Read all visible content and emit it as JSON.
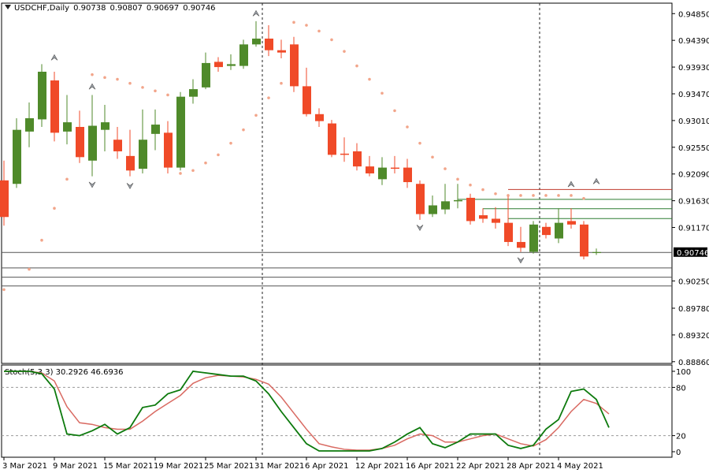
{
  "header": {
    "symbol": "USDCHF,Daily",
    "open": "0.90738",
    "high": "0.90807",
    "low": "0.90697",
    "close": "0.90746"
  },
  "stoch_header": "Stoch(5,3,3) 30.2926 46.6936",
  "colors": {
    "bull": "#4f8a2a",
    "bear": "#f04a28",
    "sar": "#f2a58a",
    "stoch_main": "#0d7a0d",
    "stoch_signal": "#d96a62",
    "hline_red": "#c0392b",
    "hline_green": "#2e7d32",
    "hline_gray": "#555555",
    "price_tag_bg": "#000000",
    "price_tag_fg": "#ffffff"
  },
  "chart_data": {
    "type": "candlestick",
    "price_axis": {
      "ticks": [
        "0.94850",
        "0.94390",
        "0.93930",
        "0.93470",
        "0.93010",
        "0.92550",
        "0.92090",
        "0.91630",
        "0.91170",
        "0.90250",
        "0.89780",
        "0.89320",
        "0.88860"
      ],
      "range": [
        0.8883,
        0.9503
      ]
    },
    "current_price_label": "0.90746",
    "date_labels": [
      "3 Mar 2021",
      "9 Mar 2021",
      "15 Mar 2021",
      "19 Mar 2021",
      "25 Mar 2021",
      "31 Mar 2021",
      "6 Apr 2021",
      "12 Apr 2021",
      "16 Apr 2021",
      "22 Apr 2021",
      "28 Apr 2021",
      "4 May 2021"
    ],
    "date_label_bars": [
      0,
      4,
      8,
      12,
      16,
      20,
      24,
      28,
      32,
      36,
      40,
      44
    ],
    "vlines_at_bars": [
      20.5,
      42.5
    ],
    "candles": [
      [
        0.9198,
        0.9135,
        0.9232,
        0.912
      ],
      [
        0.9192,
        0.9285,
        0.9305,
        0.9185
      ],
      [
        0.9282,
        0.9305,
        0.9332,
        0.9255
      ],
      [
        0.9303,
        0.9385,
        0.9398,
        0.929
      ],
      [
        0.937,
        0.928,
        0.9385,
        0.9265
      ],
      [
        0.9282,
        0.9298,
        0.9345,
        0.926
      ],
      [
        0.929,
        0.9238,
        0.9318,
        0.9228
      ],
      [
        0.9232,
        0.9292,
        0.9345,
        0.9205
      ],
      [
        0.9285,
        0.9298,
        0.9328,
        0.9248
      ],
      [
        0.9268,
        0.9248,
        0.929,
        0.9235
      ],
      [
        0.924,
        0.9215,
        0.9285,
        0.9205
      ],
      [
        0.9218,
        0.9268,
        0.932,
        0.921
      ],
      [
        0.9278,
        0.9294,
        0.932,
        0.925
      ],
      [
        0.928,
        0.922,
        0.93,
        0.921
      ],
      [
        0.922,
        0.9342,
        0.935,
        0.9215
      ],
      [
        0.9342,
        0.9355,
        0.9372,
        0.933
      ],
      [
        0.9358,
        0.94,
        0.9418,
        0.9355
      ],
      [
        0.9402,
        0.9393,
        0.941,
        0.9385
      ],
      [
        0.9395,
        0.9398,
        0.9415,
        0.9388
      ],
      [
        0.9395,
        0.9432,
        0.944,
        0.939
      ],
      [
        0.9432,
        0.9442,
        0.9472,
        0.9428
      ],
      [
        0.9442,
        0.9422,
        0.9465,
        0.9412
      ],
      [
        0.9422,
        0.9418,
        0.944,
        0.9408
      ],
      [
        0.9432,
        0.936,
        0.9445,
        0.935
      ],
      [
        0.936,
        0.9312,
        0.9392,
        0.9308
      ],
      [
        0.9312,
        0.93,
        0.9322,
        0.929
      ],
      [
        0.9296,
        0.9242,
        0.9302,
        0.9238
      ],
      [
        0.9244,
        0.9242,
        0.9272,
        0.923
      ],
      [
        0.9248,
        0.9222,
        0.9262,
        0.9215
      ],
      [
        0.9222,
        0.921,
        0.924,
        0.9205
      ],
      [
        0.92,
        0.922,
        0.9238,
        0.919
      ],
      [
        0.922,
        0.9218,
        0.924,
        0.921
      ],
      [
        0.922,
        0.9195,
        0.9235,
        0.9185
      ],
      [
        0.9192,
        0.914,
        0.9198,
        0.913
      ],
      [
        0.914,
        0.9155,
        0.9172,
        0.9135
      ],
      [
        0.9148,
        0.9162,
        0.9192,
        0.914
      ],
      [
        0.9162,
        0.9164,
        0.9192,
        0.915
      ],
      [
        0.9168,
        0.9128,
        0.9175,
        0.9122
      ],
      [
        0.9138,
        0.9132,
        0.915,
        0.9125
      ],
      [
        0.9132,
        0.9125,
        0.9152,
        0.9115
      ],
      [
        0.9125,
        0.9092,
        0.917,
        0.9085
      ],
      [
        0.9092,
        0.9082,
        0.9118,
        0.9075
      ],
      [
        0.9075,
        0.9122,
        0.9128,
        0.9072
      ],
      [
        0.9118,
        0.9104,
        0.9125,
        0.9098
      ],
      [
        0.9098,
        0.9125,
        0.915,
        0.909
      ],
      [
        0.9128,
        0.9122,
        0.915,
        0.9115
      ],
      [
        0.9122,
        0.9067,
        0.9128,
        0.9062
      ],
      [
        0.90738,
        0.90746,
        0.90807,
        0.90697
      ]
    ],
    "parabolic_sar": [
      [
        -1,
        0.8975
      ],
      [
        0,
        0.901
      ],
      [
        2,
        0.9045
      ],
      [
        3,
        0.9095
      ],
      [
        4,
        0.915
      ],
      [
        5,
        0.92
      ],
      [
        7,
        0.938
      ],
      [
        8,
        0.9375
      ],
      [
        9,
        0.9372
      ],
      [
        10,
        0.9365
      ],
      [
        11,
        0.9358
      ],
      [
        12,
        0.9352
      ],
      [
        13,
        0.9345
      ],
      [
        14,
        0.921
      ],
      [
        15,
        0.9215
      ],
      [
        16,
        0.9228
      ],
      [
        17,
        0.9242
      ],
      [
        18,
        0.9262
      ],
      [
        19,
        0.9285
      ],
      [
        20,
        0.931
      ],
      [
        21,
        0.934
      ],
      [
        22,
        0.9365
      ],
      [
        23,
        0.947
      ],
      [
        24,
        0.9465
      ],
      [
        25,
        0.9455
      ],
      [
        26,
        0.944
      ],
      [
        27,
        0.942
      ],
      [
        28,
        0.9395
      ],
      [
        29,
        0.9372
      ],
      [
        30,
        0.9348
      ],
      [
        31,
        0.9318
      ],
      [
        32,
        0.929
      ],
      [
        33,
        0.9262
      ],
      [
        34,
        0.9238
      ],
      [
        35,
        0.9218
      ],
      [
        36,
        0.92
      ],
      [
        37,
        0.919
      ],
      [
        38,
        0.9182
      ],
      [
        39,
        0.9175
      ],
      [
        40,
        0.9172
      ],
      [
        41,
        0.9172
      ],
      [
        42,
        0.9172
      ],
      [
        43,
        0.9172
      ],
      [
        44,
        0.9172
      ],
      [
        45,
        0.9172
      ],
      [
        46,
        0.9167
      ]
    ],
    "fractals_up": [
      [
        4,
        0.9398
      ],
      [
        7,
        0.9348
      ],
      [
        20,
        0.9474
      ],
      [
        45,
        0.918
      ],
      [
        47,
        0.9185
      ]
    ],
    "fractals_down": [
      [
        7,
        0.9202
      ],
      [
        10,
        0.92
      ],
      [
        33,
        0.9128
      ],
      [
        41,
        0.9072
      ]
    ],
    "hlines": [
      {
        "price": 0.9183,
        "color": "red",
        "from_bar": 40
      },
      {
        "price": 0.9166,
        "color": "green",
        "from_bar": 36
      },
      {
        "price": 0.915,
        "color": "green",
        "from_bar": 38
      },
      {
        "price": 0.9133,
        "color": "green",
        "from_bar": 40
      },
      {
        "price": 0.90746,
        "color": "gray",
        "from_bar": -1
      },
      {
        "price": 0.9048,
        "color": "gray",
        "from_bar": -1
      },
      {
        "price": 0.9032,
        "color": "gray",
        "from_bar": -1
      },
      {
        "price": 0.9017,
        "color": "gray",
        "from_bar": -1
      }
    ],
    "stochastic": {
      "levels": [
        80,
        20
      ],
      "ticks": [
        "100",
        "80",
        "20",
        "0"
      ],
      "main": [
        100,
        100,
        100,
        97,
        78,
        22,
        20,
        26,
        34,
        22,
        30,
        55,
        58,
        72,
        77,
        100,
        98,
        96,
        94,
        94,
        88,
        72,
        50,
        30,
        10,
        1,
        1,
        1,
        1,
        1,
        4,
        12,
        22,
        30,
        10,
        5,
        12,
        22,
        22,
        22,
        8,
        4,
        8,
        28,
        40,
        75,
        78,
        65,
        30
      ],
      "signal": [
        100,
        100,
        100,
        98,
        88,
        56,
        36,
        34,
        30,
        28,
        28,
        38,
        50,
        60,
        70,
        85,
        92,
        95,
        94,
        93,
        90,
        84,
        68,
        48,
        28,
        10,
        6,
        3,
        2,
        2,
        4,
        8,
        16,
        22,
        20,
        12,
        12,
        16,
        20,
        22,
        16,
        10,
        7,
        15,
        30,
        50,
        65,
        60,
        47
      ]
    }
  }
}
